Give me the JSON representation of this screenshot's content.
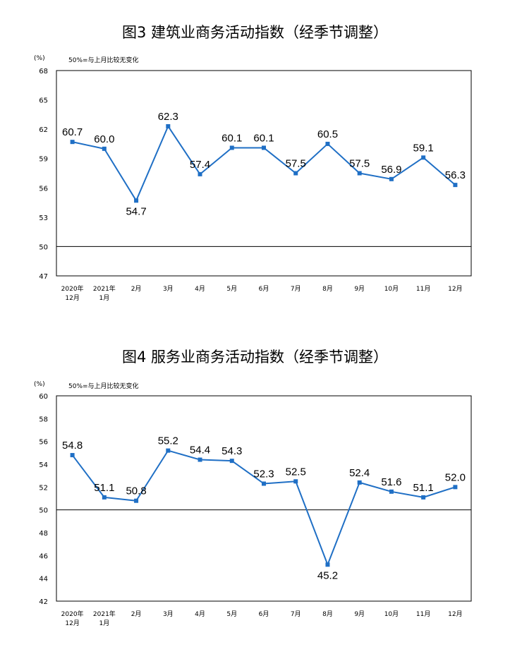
{
  "chart_data": [
    {
      "type": "line",
      "title": "图3  建筑业商务活动指数（经季节调整）",
      "ylabel": "(%)",
      "note": "50%=与上月比较无变化",
      "categories": [
        "2020年\n12月",
        "2021年\n1月",
        "2月",
        "3月",
        "4月",
        "5月",
        "6月",
        "7月",
        "8月",
        "9月",
        "10月",
        "11月",
        "12月"
      ],
      "series": [
        {
          "values": [
            60.7,
            60.0,
            54.7,
            62.3,
            57.4,
            60.1,
            60.1,
            57.5,
            60.5,
            57.5,
            56.9,
            59.1,
            56.3
          ]
        }
      ],
      "value_labels": [
        "60.7",
        "60.0",
        "54.7",
        "62.3",
        "57.4",
        "60.1",
        "60.1",
        "57.5",
        "60.5",
        "57.5",
        "56.9",
        "59.1",
        "56.3"
      ],
      "label_pos": [
        "above",
        "above",
        "below",
        "above",
        "above",
        "above",
        "above",
        "above",
        "above",
        "above",
        "above",
        "above",
        "above"
      ],
      "yticks": [
        "47",
        "50",
        "53",
        "56",
        "59",
        "62",
        "65",
        "68"
      ],
      "ylim": [
        47,
        68
      ],
      "reference_line": 50,
      "line_color": "#1f6fc5"
    },
    {
      "type": "line",
      "title": "图4  服务业商务活动指数（经季节调整）",
      "ylabel": "(%)",
      "note": "50%=与上月比较无变化",
      "categories": [
        "2020年\n12月",
        "2021年\n1月",
        "2月",
        "3月",
        "4月",
        "5月",
        "6月",
        "7月",
        "8月",
        "9月",
        "10月",
        "11月",
        "12月"
      ],
      "series": [
        {
          "values": [
            54.8,
            51.1,
            50.8,
            55.2,
            54.4,
            54.3,
            52.3,
            52.5,
            45.2,
            52.4,
            51.6,
            51.1,
            52.0
          ]
        }
      ],
      "value_labels": [
        "54.8",
        "51.1",
        "50.8",
        "55.2",
        "54.4",
        "54.3",
        "52.3",
        "52.5",
        "45.2",
        "52.4",
        "51.6",
        "51.1",
        "52.0"
      ],
      "label_pos": [
        "above",
        "above",
        "above",
        "above",
        "above",
        "above",
        "above",
        "above",
        "below",
        "above",
        "above",
        "above",
        "above"
      ],
      "yticks": [
        "42",
        "44",
        "46",
        "48",
        "50",
        "52",
        "54",
        "56",
        "58",
        "60"
      ],
      "ylim": [
        42,
        60
      ],
      "reference_line": 50,
      "line_color": "#1f6fc5"
    }
  ]
}
